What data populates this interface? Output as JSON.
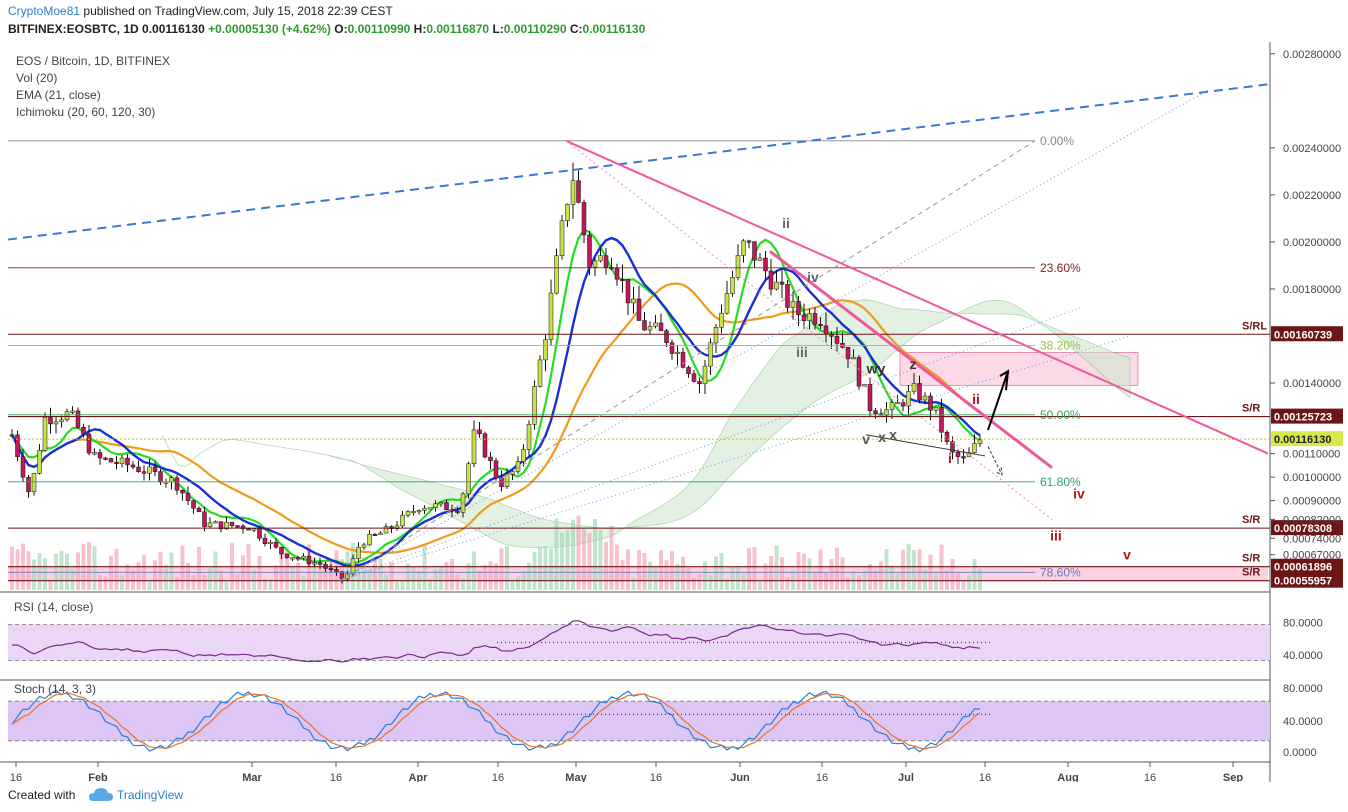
{
  "header": {
    "author": "CryptoMoe81",
    "published": "published on TradingView.com, July 15, 2018 22:39 CEST",
    "ohlc_line": "BITFINEX:EOSBTC, 1D",
    "last": "0.00116130",
    "change": "+0.00005130 (+4.62%)",
    "o_label": "O:",
    "o": "0.00110990",
    "h_label": "H:",
    "h": "0.00116870",
    "l_label": "L:",
    "l": "0.00110290",
    "c_label": "C:",
    "c": "0.00116130"
  },
  "legend": {
    "symbol": "EOS / Bitcoin, 1D, BITFINEX",
    "vol": "Vol (20)",
    "ema": "EMA (21, close)",
    "ichimoku": "Ichimoku (20, 60, 120, 30)"
  },
  "footer": {
    "made": "Created with",
    "brand": "TradingView"
  },
  "colors": {
    "up": "#c8e04a",
    "down": "#c2185b",
    "ema": "#1a2fd6",
    "kijun": "#f29a1a",
    "tenkan": "#22dd22",
    "trend_pink": "#f0589a",
    "fib": "#8a2020",
    "blue_dash": "#3b78d6"
  },
  "chart_data": {
    "type": "candlestick",
    "price_axis": {
      "ticks": [
        "0.00280000",
        "0.00240000",
        "0.00220000",
        "0.00200000",
        "0.00180000",
        "0.00140000",
        "0.00110000",
        "0.00100000",
        "0.00090000",
        "0.00082000",
        "0.00074000",
        "0.00067000",
        "0.00055957"
      ],
      "range": [
        0.00052,
        0.00285
      ]
    },
    "time_axis": {
      "ticks": [
        "16",
        "Feb",
        "Mar",
        "16",
        "Apr",
        "16",
        "May",
        "16",
        "Jun",
        "16",
        "Jul",
        "16",
        "Aug",
        "16",
        "Sep"
      ]
    },
    "fib_levels": [
      {
        "label": "0.00%",
        "price": 0.00243
      },
      {
        "label": "23.60%",
        "price": 0.00189
      },
      {
        "label": "38.20%",
        "price": 0.00156
      },
      {
        "label": "50.00%",
        "price": 0.001265
      },
      {
        "label": "61.80%",
        "price": 0.00098
      },
      {
        "label": "78.60%",
        "price": 0.000595
      }
    ],
    "sr_levels": [
      {
        "label": "S/RL",
        "price": 0.00160739,
        "text": "0.00160739"
      },
      {
        "label": "S/R",
        "price": 0.00125723,
        "text": "0.00125723"
      },
      {
        "label": "S/R",
        "price": 0.00078308,
        "text": "0.00078308"
      },
      {
        "label": "S/R",
        "price": 0.00061896,
        "text": "0.00061896"
      },
      {
        "label": "S/R",
        "price": 0.00055957,
        "text": "0.00055957"
      }
    ],
    "current_price": {
      "price": 0.0011613,
      "text": "0.00116130"
    },
    "wave_labels": [
      {
        "text": "ii"
      },
      {
        "text": "iv"
      },
      {
        "text": "iii"
      },
      {
        "text": "wy"
      },
      {
        "text": "z"
      },
      {
        "text": "ii"
      },
      {
        "text": "v"
      },
      {
        "text": "x"
      },
      {
        "text": "x"
      },
      {
        "text": "i"
      },
      {
        "text": "iv"
      },
      {
        "text": "iii"
      },
      {
        "text": "v"
      }
    ],
    "rsi": {
      "label": "RSI (14, close)",
      "ticks": [
        "80.0000",
        "40.0000"
      ]
    },
    "stoch": {
      "label": "Stoch (14, 3, 3)",
      "ticks": [
        "80.0000",
        "40.0000",
        "0.0000"
      ]
    }
  }
}
